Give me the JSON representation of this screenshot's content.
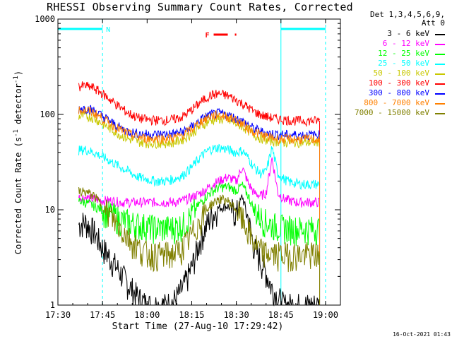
{
  "chart_data": {
    "type": "line",
    "title": "RHESSI Observing Summary Count Rates, Corrected",
    "xlabel": "Start Time (27-Aug-10 17:29:42)",
    "ylabel_main": "Corrected Count Rate (s",
    "ylabel_mid": " detector",
    "ylabel_end": ")",
    "ylabel_sup": "-1",
    "x_unit": "minutes after 17:30",
    "xlim": [
      0,
      95
    ],
    "ylim": [
      1,
      1000
    ],
    "yscale": "log",
    "x_ticks": [
      {
        "label": "17:30",
        "x": 0
      },
      {
        "label": "17:45",
        "x": 15
      },
      {
        "label": "18:00",
        "x": 30
      },
      {
        "label": "18:15",
        "x": 45
      },
      {
        "label": "18:30",
        "x": 60
      },
      {
        "label": "18:45",
        "x": 75
      },
      {
        "label": "19:00",
        "x": 90
      }
    ],
    "y_ticks": [
      {
        "label": "1",
        "y": 1
      },
      {
        "label": "10",
        "y": 10
      },
      {
        "label": "100",
        "y": 100
      },
      {
        "label": "1000",
        "y": 1000
      }
    ],
    "legend_header": [
      "Det 1,3,4,5,6,9,",
      "Att 0"
    ],
    "series": [
      {
        "name": "3 - 6 keV",
        "color": "#000000",
        "x": [
          7,
          9,
          12,
          15,
          18,
          21,
          24,
          27,
          30,
          33,
          36,
          39,
          42,
          45,
          48,
          51,
          54,
          57,
          60,
          62,
          64,
          66,
          68,
          70,
          72,
          74,
          76,
          78,
          80,
          83,
          86,
          88
        ],
        "y": [
          7,
          7.5,
          6,
          4,
          3,
          2.2,
          1.6,
          1.2,
          1,
          1,
          1,
          1.1,
          1.5,
          2.5,
          5,
          8,
          10.5,
          11,
          9,
          14,
          8,
          4,
          3,
          2.2,
          1.5,
          1.2,
          1,
          1,
          1,
          1,
          1,
          1
        ]
      },
      {
        "name": "6 - 12 keV",
        "color": "#ff00ff",
        "x": [
          7,
          9,
          12,
          15,
          18,
          21,
          24,
          27,
          30,
          33,
          36,
          39,
          42,
          45,
          48,
          51,
          54,
          57,
          60,
          62,
          64,
          66,
          68,
          70,
          72,
          74,
          76,
          78,
          80,
          83,
          86,
          88
        ],
        "y": [
          13.5,
          13.5,
          13,
          12.5,
          12.5,
          12,
          12,
          12,
          12,
          12,
          12,
          12,
          12.5,
          13.5,
          15,
          17.5,
          20,
          22,
          20,
          28,
          19,
          15,
          14,
          15,
          35,
          15,
          13,
          12.5,
          12,
          12,
          12,
          12
        ]
      },
      {
        "name": "12 - 25 keV",
        "color": "#00ff00",
        "x": [
          7,
          9,
          12,
          15,
          18,
          21,
          24,
          27,
          30,
          33,
          36,
          39,
          42,
          45,
          48,
          51,
          54,
          57,
          60,
          62,
          64,
          66,
          68,
          70,
          72,
          74,
          76,
          78,
          80,
          83,
          86,
          88
        ],
        "y": [
          12.5,
          12,
          11,
          10,
          9,
          8,
          7.5,
          7,
          6.8,
          6.5,
          6.5,
          6.6,
          7,
          9,
          12,
          15,
          17,
          17.5,
          16,
          18,
          14,
          10,
          8.5,
          7.5,
          7,
          6.8,
          6.5,
          6.5,
          6.4,
          6.4,
          6.4,
          6.4
        ]
      },
      {
        "name": "25 - 50 keV",
        "color": "#00ffff",
        "x": [
          7,
          9,
          12,
          15,
          18,
          21,
          24,
          27,
          30,
          33,
          36,
          39,
          42,
          45,
          48,
          51,
          54,
          57,
          60,
          62,
          64,
          66,
          68,
          70,
          72,
          74,
          76,
          78,
          80,
          83,
          86,
          88
        ],
        "y": [
          42,
          43,
          40,
          36,
          32,
          28,
          25,
          22,
          21,
          20,
          20,
          21,
          23,
          28,
          36,
          43,
          45,
          43,
          40,
          42,
          35,
          28,
          24,
          25,
          45,
          24,
          21,
          19.5,
          19,
          18.5,
          18.5,
          18.5
        ]
      },
      {
        "name": "50 - 100 keV",
        "color": "#c8c800",
        "x": [
          7,
          9,
          12,
          15,
          18,
          21,
          24,
          27,
          30,
          33,
          36,
          39,
          42,
          45,
          48,
          51,
          54,
          57,
          60,
          62,
          64,
          66,
          68,
          70,
          72,
          74,
          76,
          78,
          80,
          83,
          86,
          88
        ],
        "y": [
          95,
          97,
          92,
          80,
          70,
          61,
          55,
          52,
          50,
          50,
          50,
          51,
          55,
          63,
          75,
          86,
          90,
          87,
          80,
          75,
          68,
          61,
          57,
          54,
          53,
          52,
          51,
          51,
          51,
          51,
          51,
          51
        ]
      },
      {
        "name": "100 - 300 keV",
        "color": "#ff0000",
        "x": [
          7,
          9,
          12,
          15,
          18,
          21,
          24,
          27,
          30,
          33,
          36,
          39,
          42,
          45,
          48,
          51,
          54,
          57,
          60,
          62,
          64,
          66,
          68,
          70,
          72,
          74,
          76,
          78,
          80,
          83,
          86,
          88
        ],
        "y": [
          195,
          200,
          190,
          165,
          140,
          118,
          102,
          92,
          88,
          87,
          87,
          89,
          95,
          112,
          135,
          158,
          165,
          158,
          142,
          130,
          118,
          107,
          100,
          95,
          92,
          90,
          88,
          87,
          86,
          86,
          86,
          86
        ]
      },
      {
        "name": "300 - 800 keV",
        "color": "#0000ff",
        "x": [
          7,
          9,
          12,
          15,
          18,
          21,
          24,
          27,
          30,
          33,
          36,
          39,
          42,
          45,
          48,
          51,
          54,
          57,
          60,
          62,
          64,
          66,
          68,
          70,
          72,
          74,
          76,
          78,
          80,
          83,
          86,
          88
        ],
        "y": [
          115,
          117,
          110,
          96,
          83,
          72,
          66,
          63,
          62,
          62,
          62,
          63,
          66,
          74,
          88,
          99,
          103,
          99,
          91,
          85,
          78,
          71,
          67,
          64,
          63,
          62,
          61,
          61,
          61,
          61,
          61,
          61
        ]
      },
      {
        "name": "800 - 7000 keV",
        "color": "#ff8000",
        "x": [
          7,
          9,
          12,
          15,
          18,
          21,
          24,
          27,
          30,
          33,
          36,
          39,
          42,
          45,
          48,
          51,
          54,
          57,
          60,
          62,
          64,
          66,
          68,
          70,
          72,
          74,
          76,
          78,
          80,
          83,
          86,
          88
        ],
        "y": [
          110,
          112,
          105,
          91,
          79,
          69,
          62,
          58,
          56,
          56,
          56,
          57,
          61,
          70,
          84,
          95,
          99,
          95,
          87,
          80,
          72,
          66,
          62,
          59,
          57,
          56,
          55,
          55,
          55,
          55,
          55,
          55
        ]
      },
      {
        "name": "7000 - 15000 keV",
        "color": "#808000",
        "x": [
          7,
          9,
          12,
          15,
          18,
          21,
          24,
          27,
          30,
          33,
          36,
          39,
          42,
          45,
          48,
          51,
          54,
          57,
          60,
          62,
          64,
          66,
          68,
          70,
          72,
          74,
          76,
          78,
          80,
          83,
          86,
          88
        ],
        "y": [
          15.5,
          15.5,
          14,
          11,
          8.5,
          6.5,
          5,
          4,
          3.5,
          3.4,
          3.4,
          3.5,
          4,
          5.5,
          8,
          11,
          13,
          12.5,
          10,
          8,
          6,
          4.5,
          3.8,
          3.5,
          3.5,
          3.4,
          3.4,
          3.4,
          3.4,
          3.4,
          3.4,
          3.4
        ]
      }
    ],
    "markers": [
      {
        "type": "vline",
        "x": 15,
        "style": "dash",
        "color": "#00ffff"
      },
      {
        "type": "vline",
        "x": 75,
        "style": "solid",
        "color": "#00ffff"
      },
      {
        "type": "vline",
        "x": 90,
        "style": "dash",
        "color": "#00ffff"
      },
      {
        "type": "vline",
        "x": 0,
        "style": "solid",
        "color": "#00ffff"
      }
    ],
    "night_bars": [
      {
        "from": 0,
        "to": 15,
        "label": "N",
        "color": "#00ffff"
      },
      {
        "from": 75,
        "to": 90,
        "label": "",
        "color": "#00ffff"
      }
    ],
    "flare_flag": {
      "label": "F",
      "from": 50,
      "to": 60,
      "color": "#ff0000"
    },
    "data_span": {
      "from": 7,
      "to": 88
    }
  },
  "footer": {
    "date": "16-Oct-2021 01:43"
  }
}
